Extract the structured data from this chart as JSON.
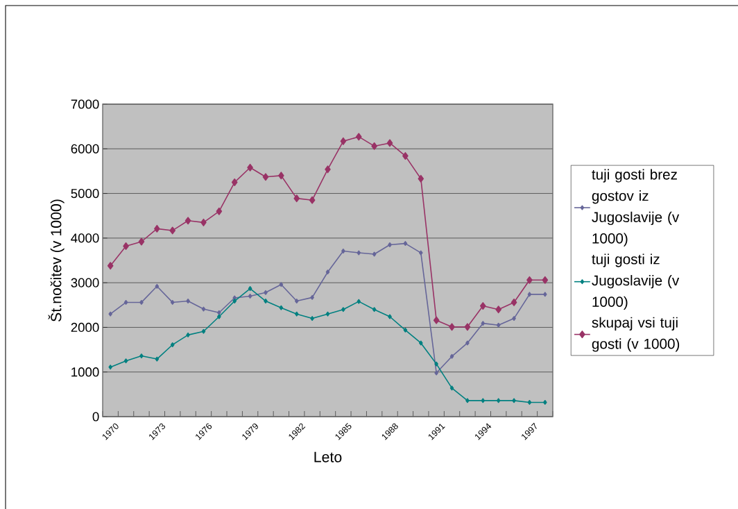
{
  "chart_data": {
    "type": "line",
    "xlabel": "Leto",
    "ylabel": "Št.nočitev (v 1000)",
    "categories": [
      "1970",
      null,
      null,
      "1973",
      null,
      null,
      "1976",
      null,
      null,
      "1979",
      null,
      null,
      "1982",
      null,
      null,
      "1985",
      null,
      null,
      "1988",
      null,
      null,
      "1991",
      null,
      null,
      "1994",
      null,
      null,
      "1997",
      null
    ],
    "series": [
      {
        "name": "tuji gosti brez gostov iz Jugoslavije (v 1000)",
        "color": "#666699",
        "values": [
          2300,
          2560,
          2560,
          2920,
          2560,
          2590,
          2410,
          2330,
          2660,
          2700,
          2780,
          2960,
          2590,
          2670,
          3240,
          3710,
          3670,
          3640,
          3850,
          3880,
          3670,
          980,
          1350,
          1650,
          2090,
          2050,
          2200,
          2740,
          2740
        ]
      },
      {
        "name": "tuji gosti iz Jugoslavije (v 1000)",
        "color": "#008080",
        "values": [
          1110,
          1250,
          1360,
          1290,
          1610,
          1830,
          1910,
          2240,
          2590,
          2870,
          2590,
          2440,
          2300,
          2200,
          2300,
          2400,
          2580,
          2400,
          2240,
          1940,
          1650,
          1180,
          640,
          360,
          360,
          360,
          360,
          320,
          320
        ]
      },
      {
        "name": "skupaj vsi tuji gosti (v 1000)",
        "color": "#993366",
        "values": [
          3380,
          3820,
          3920,
          4210,
          4170,
          4390,
          4350,
          4600,
          5250,
          5580,
          5370,
          5400,
          4890,
          4850,
          5540,
          6170,
          6270,
          6060,
          6130,
          5840,
          5330,
          2160,
          2010,
          2010,
          2480,
          2400,
          2560,
          3060,
          3060
        ]
      }
    ],
    "ylim": [
      0,
      7000
    ],
    "yticks": [
      0,
      1000,
      2000,
      3000,
      4000,
      5000,
      6000,
      7000
    ],
    "grid": "y",
    "legend": "right",
    "marker": "diamond",
    "line_style": "solid"
  }
}
